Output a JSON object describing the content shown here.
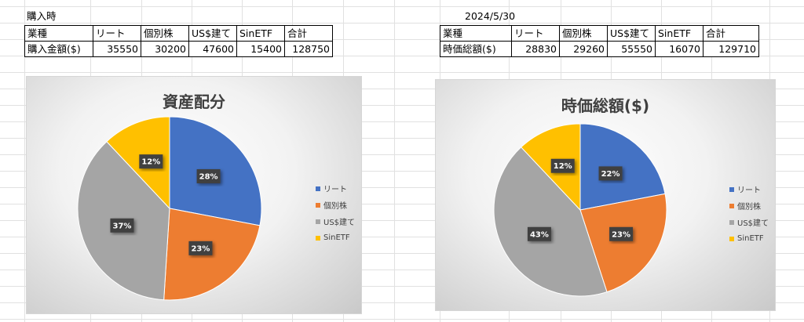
{
  "sheet": {
    "purchase_caption": "購入時",
    "date_caption": "2024/5/30",
    "purchase_table": {
      "header": [
        "業種",
        "リート",
        "個別株",
        "US$建て",
        "SinETF",
        "合計"
      ],
      "row": [
        "購入金額($)",
        "35550",
        "30200",
        "47600",
        "15400",
        "128750"
      ]
    },
    "value_table": {
      "header": [
        "業種",
        "リート",
        "個別株",
        "US$建て",
        "SinETF",
        "合計"
      ],
      "row": [
        "時価総額($)",
        "28830",
        "29260",
        "55550",
        "16070",
        "129710"
      ]
    }
  },
  "colors": {
    "blue": "#4472c4",
    "orange": "#ed7d31",
    "gray": "#a5a5a5",
    "yellow": "#ffc000",
    "label_bg": "#404040",
    "grid": "#e1e1e1"
  },
  "chart_data": [
    {
      "type": "pie",
      "title": "資産配分",
      "categories": [
        "リート",
        "個別株",
        "US$建て",
        "SinETF"
      ],
      "values": [
        28,
        23,
        37,
        12
      ],
      "data_labels": [
        "28%",
        "23%",
        "37%",
        "12%"
      ],
      "legend": "right"
    },
    {
      "type": "pie",
      "title": "時価総額($)",
      "categories": [
        "リート",
        "個別株",
        "US$建て",
        "SinETF"
      ],
      "values": [
        22,
        23,
        43,
        12
      ],
      "data_labels": [
        "22%",
        "23%",
        "43%",
        "12%"
      ],
      "legend": "right"
    }
  ]
}
